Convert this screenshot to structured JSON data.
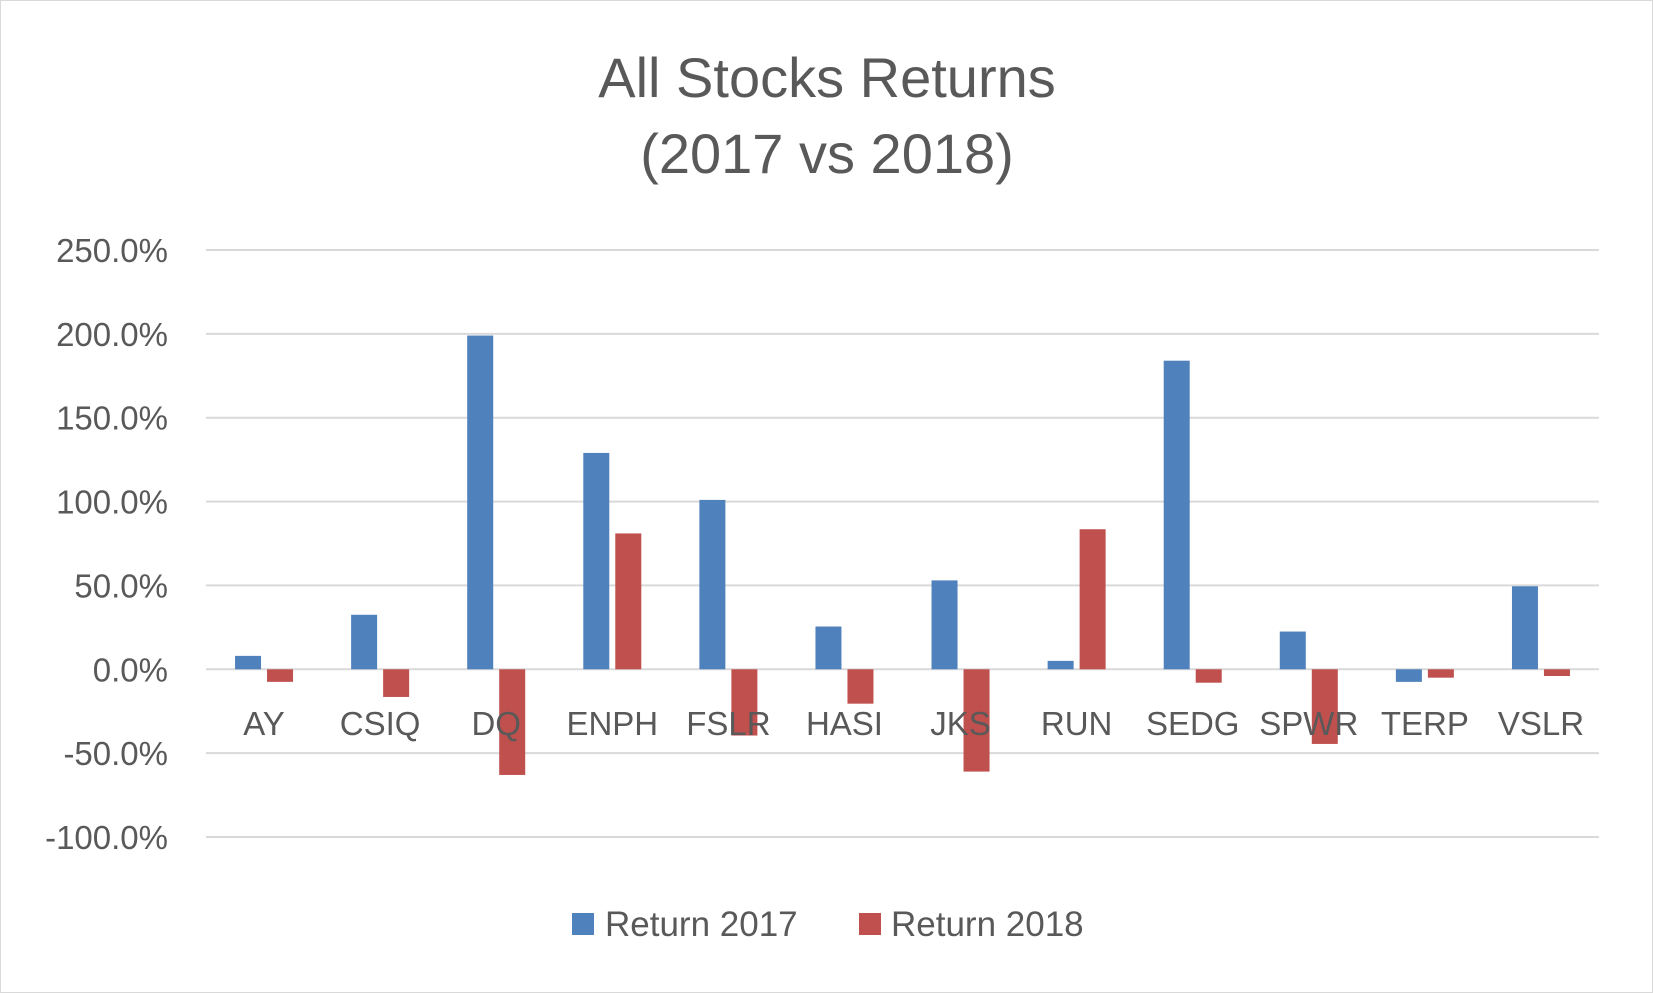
{
  "chart_data": {
    "type": "bar",
    "title_lines": [
      "All Stocks Returns",
      "(2017 vs 2018)"
    ],
    "categories": [
      "AY",
      "CSIQ",
      "DQ",
      "ENPH",
      "FSLR",
      "HASI",
      "JKS",
      "RUN",
      "SEDG",
      "SPWR",
      "TERP",
      "VSLR"
    ],
    "series": [
      {
        "name": "Return 2017",
        "color": "#4f81bd",
        "values": [
          8.0,
          32.5,
          199.0,
          129.0,
          101.0,
          25.5,
          53.0,
          5.0,
          184.0,
          22.5,
          -7.5,
          49.5
        ]
      },
      {
        "name": "Return 2018",
        "color": "#c0504d",
        "values": [
          -7.5,
          -16.5,
          -63.0,
          81.0,
          -39.5,
          -20.5,
          -61.0,
          83.5,
          -8.0,
          -44.5,
          -5.0,
          -4.0
        ]
      }
    ],
    "y_ticks": [
      "250.0%",
      "200.0%",
      "150.0%",
      "100.0%",
      "50.0%",
      "0.0%",
      "-50.0%",
      "-100.0%"
    ],
    "ylim": [
      -100,
      250
    ],
    "y_step": 50,
    "grid": true,
    "legend_position": "bottom"
  }
}
